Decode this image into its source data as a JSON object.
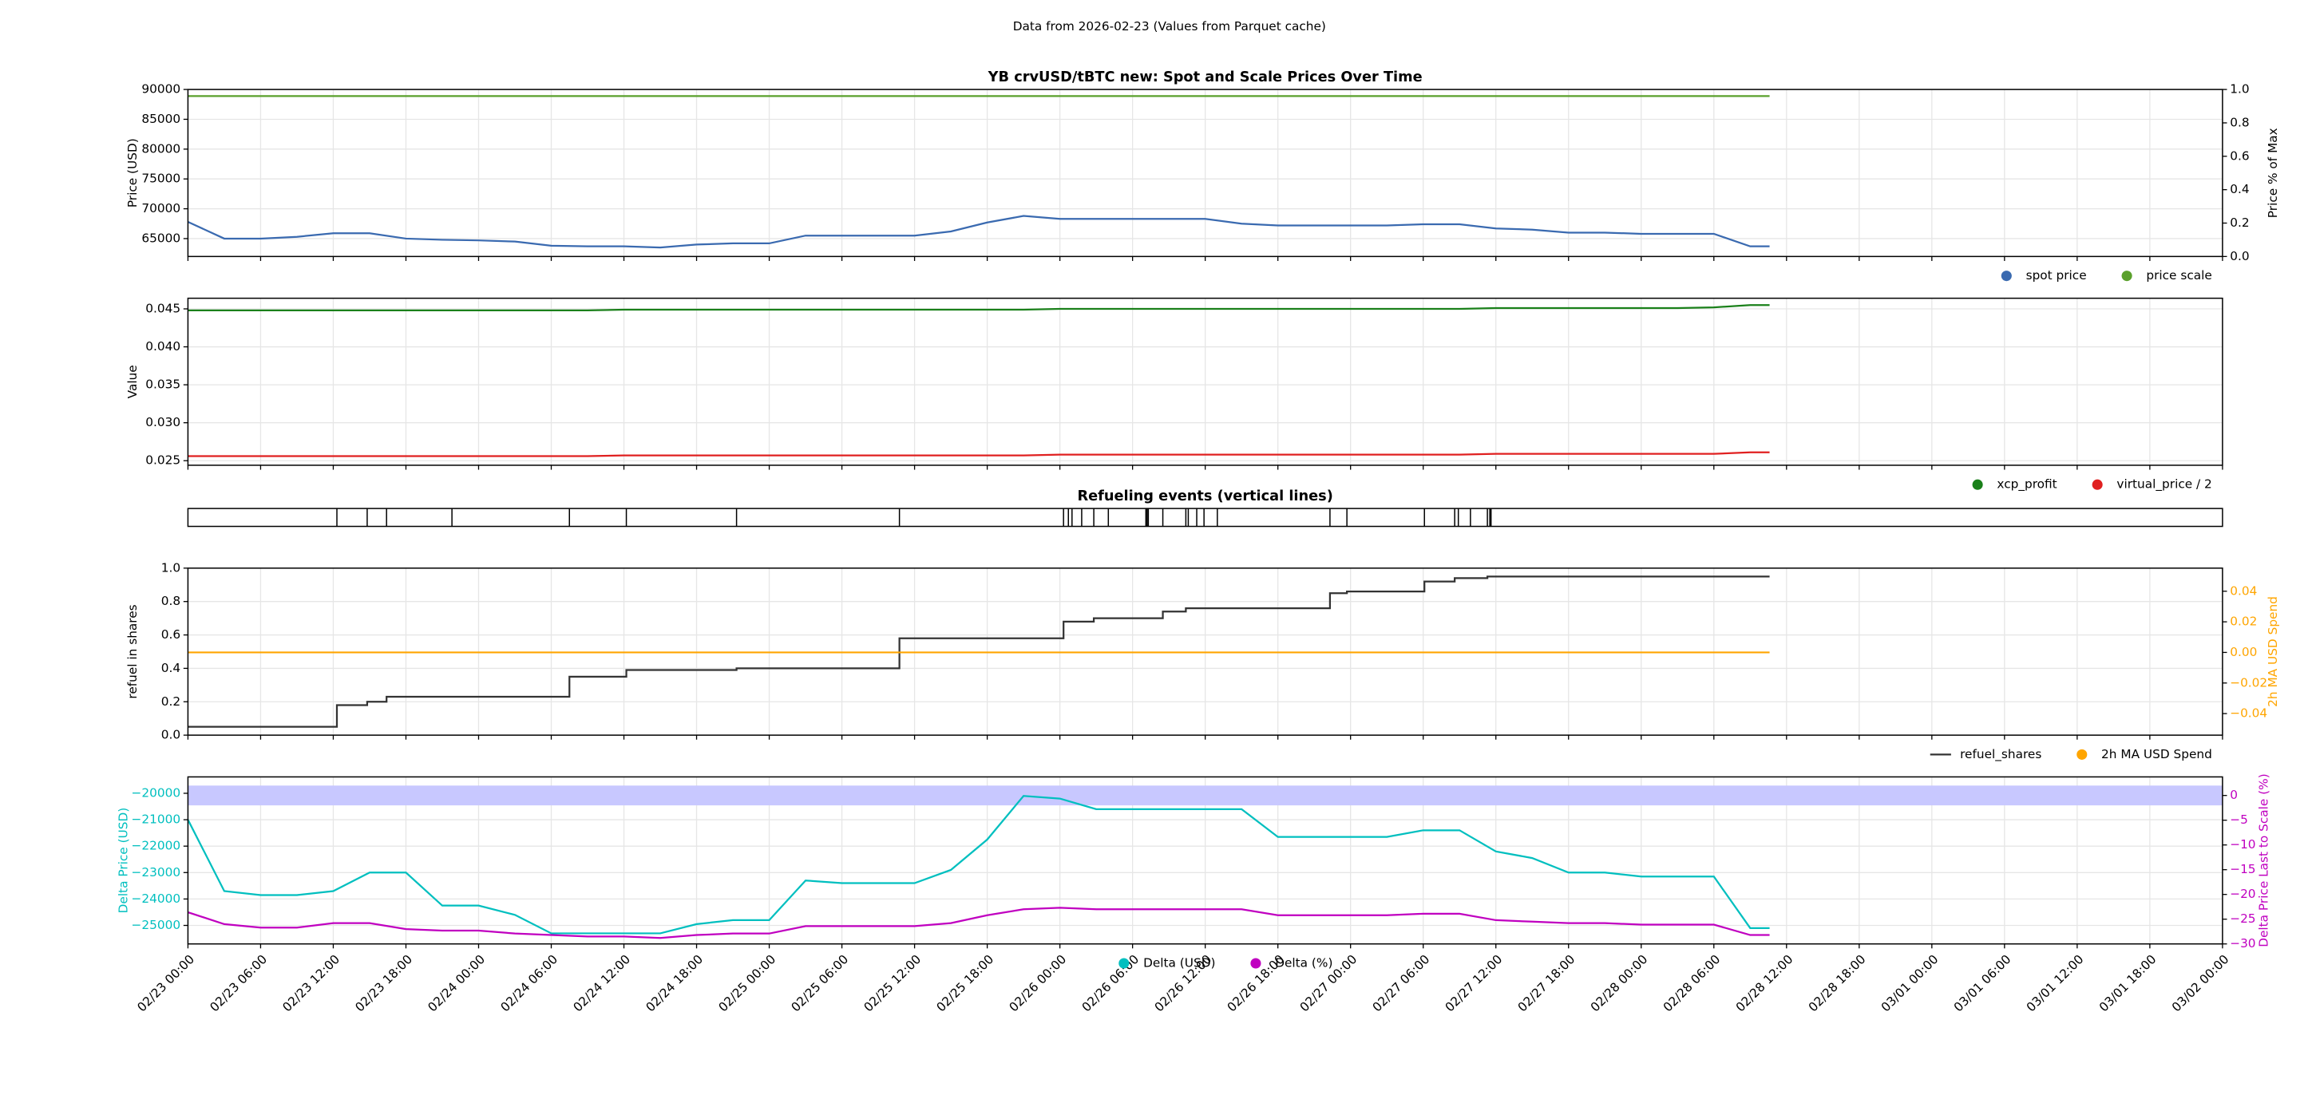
{
  "suptitle": "Data from 2026-02-23 (Values from Parquet cache)",
  "chart_data": [
    {
      "type": "line",
      "title": "YB crvUSD/tBTC new: Spot and Scale Prices Over Time",
      "ylabel": "Price (USD)",
      "y2label": "Price % of Max",
      "x": [
        "02/23 00:00",
        "02/23 03:00",
        "02/23 06:00",
        "02/23 09:00",
        "02/23 12:00",
        "02/23 15:00",
        "02/23 18:00",
        "02/23 21:00",
        "02/24 00:00",
        "02/24 03:00",
        "02/24 06:00",
        "02/24 09:00",
        "02/24 12:00",
        "02/24 15:00",
        "02/24 18:00",
        "02/24 21:00",
        "02/25 00:00",
        "02/25 03:00",
        "02/25 06:00",
        "02/25 09:00",
        "02/25 12:00",
        "02/25 15:00",
        "02/25 18:00",
        "02/25 21:00",
        "02/26 00:00",
        "02/26 03:00",
        "02/26 06:00",
        "02/26 09:00",
        "02/26 12:00",
        "02/26 15:00",
        "02/26 18:00",
        "02/26 21:00",
        "02/27 00:00",
        "02/27 03:00",
        "02/27 06:00",
        "02/27 09:00",
        "02/27 12:00",
        "02/27 15:00",
        "02/27 18:00",
        "02/27 21:00",
        "02/28 00:00",
        "02/28 03:00",
        "02/28 06:00",
        "02/28 09:00",
        "02/28 10:36"
      ],
      "series": [
        {
          "name": "spot price",
          "color": "#3a6ab0",
          "values": [
            67800,
            65000,
            65000,
            65300,
            65900,
            65900,
            65000,
            64800,
            64700,
            64500,
            63800,
            63700,
            63700,
            63500,
            64000,
            64200,
            64200,
            65500,
            65500,
            65500,
            65500,
            66200,
            67700,
            68800,
            68300,
            68300,
            68300,
            68300,
            68300,
            67500,
            67200,
            67200,
            67200,
            67200,
            67400,
            67400,
            66700,
            66500,
            66000,
            66000,
            65800,
            65800,
            65800,
            63700,
            63700
          ]
        },
        {
          "name": "price scale",
          "color": "#5aa02c",
          "values": [
            88900,
            88900,
            88900,
            88900,
            88900,
            88900,
            88900,
            88900,
            88900,
            88900,
            88900,
            88900,
            88900,
            88900,
            88900,
            88900,
            88900,
            88900,
            88900,
            88900,
            88900,
            88900,
            88900,
            88900,
            88900,
            88900,
            88900,
            88900,
            88900,
            88900,
            88900,
            88900,
            88900,
            88900,
            88900,
            88900,
            88900,
            88900,
            88900,
            88900,
            88900,
            88900,
            88900,
            88900,
            88900
          ]
        }
      ],
      "ylim": [
        62000,
        90000
      ],
      "yticks": [
        65000,
        70000,
        75000,
        80000,
        85000,
        90000
      ],
      "y2lim": [
        0,
        1
      ],
      "y2ticks": [
        {
          "value": 0,
          "label": "0.0"
        },
        0.2,
        0.4,
        0.6,
        0.8,
        {
          "value": 1,
          "label": "1.0"
        }
      ],
      "grid": true,
      "legend": "below-right"
    },
    {
      "type": "line",
      "ylabel": "Value",
      "x": [
        "02/23 00:00",
        "02/23 03:00",
        "02/23 06:00",
        "02/23 09:00",
        "02/23 12:00",
        "02/23 15:00",
        "02/23 18:00",
        "02/23 21:00",
        "02/24 00:00",
        "02/24 03:00",
        "02/24 06:00",
        "02/24 09:00",
        "02/24 12:00",
        "02/24 15:00",
        "02/24 18:00",
        "02/24 21:00",
        "02/25 00:00",
        "02/25 03:00",
        "02/25 06:00",
        "02/25 09:00",
        "02/25 12:00",
        "02/25 15:00",
        "02/25 18:00",
        "02/25 21:00",
        "02/26 00:00",
        "02/26 03:00",
        "02/26 06:00",
        "02/26 09:00",
        "02/26 12:00",
        "02/26 15:00",
        "02/26 18:00",
        "02/26 21:00",
        "02/27 00:00",
        "02/27 03:00",
        "02/27 06:00",
        "02/27 09:00",
        "02/27 12:00",
        "02/27 15:00",
        "02/27 18:00",
        "02/27 21:00",
        "02/28 00:00",
        "02/28 03:00",
        "02/28 06:00",
        "02/28 09:00",
        "02/28 10:36"
      ],
      "series": [
        {
          "name": "xcp_profit",
          "color": "#1a801a",
          "values": [
            0.0448,
            0.0448,
            0.0448,
            0.0448,
            0.0448,
            0.0448,
            0.0448,
            0.0448,
            0.0448,
            0.0448,
            0.0448,
            0.0448,
            0.0449,
            0.0449,
            0.0449,
            0.0449,
            0.0449,
            0.0449,
            0.0449,
            0.0449,
            0.0449,
            0.0449,
            0.0449,
            0.0449,
            0.045,
            0.045,
            0.045,
            0.045,
            0.045,
            0.045,
            0.045,
            0.045,
            0.045,
            0.045,
            0.045,
            0.045,
            0.0451,
            0.0451,
            0.0451,
            0.0451,
            0.0451,
            0.0451,
            0.0452,
            0.0455,
            0.0455
          ]
        },
        {
          "name": "virtual_price / 2",
          "color": "#e02020",
          "values": [
            0.0256,
            0.0256,
            0.0256,
            0.0256,
            0.0256,
            0.0256,
            0.0256,
            0.0256,
            0.0256,
            0.0256,
            0.0256,
            0.0256,
            0.0257,
            0.0257,
            0.0257,
            0.0257,
            0.0257,
            0.0257,
            0.0257,
            0.0257,
            0.0257,
            0.0257,
            0.0257,
            0.0257,
            0.0258,
            0.0258,
            0.0258,
            0.0258,
            0.0258,
            0.0258,
            0.0258,
            0.0258,
            0.0258,
            0.0258,
            0.0258,
            0.0258,
            0.0259,
            0.0259,
            0.0259,
            0.0259,
            0.0259,
            0.0259,
            0.0259,
            0.0261,
            0.0261
          ]
        }
      ],
      "ylim": [
        0.0244,
        0.0464
      ],
      "yticks": [
        0.025,
        {
          "value": 0.03,
          "label": "0.030"
        },
        0.035,
        {
          "value": 0.04,
          "label": "0.040"
        },
        0.045
      ],
      "grid": true,
      "legend": "below-right"
    },
    {
      "type": "events",
      "title": "Refueling events (vertical lines)",
      "color": "#000000",
      "x": [
        "02/23 12:18",
        "02/23 14:48",
        "02/23 16:24",
        "02/23 21:48",
        "02/24 07:30",
        "02/24 12:12",
        "02/24 21:18",
        "02/25 10:45",
        "02/26 00:18",
        "02/26 00:42",
        "02/26 01:00",
        "02/26 01:48",
        "02/26 02:48",
        "02/26 04:00",
        "02/26 07:06",
        "02/26 07:12",
        "02/26 07:18",
        "02/26 08:30",
        "02/26 10:24",
        "02/26 10:36",
        "02/26 11:18",
        "02/26 11:54",
        "02/26 13:00",
        "02/26 22:18",
        "02/26 23:42",
        "02/27 06:06",
        "02/27 08:36",
        "02/27 08:54",
        "02/27 09:54",
        "02/27 11:18",
        "02/27 11:30",
        "02/27 11:36"
      ]
    },
    {
      "type": "line",
      "ylabel": "refuel in shares",
      "y2label": "2h MA USD Spend",
      "y2_color": "#ffa500",
      "series": [
        {
          "name": "refuel_shares",
          "color": "#333333",
          "legend_marker": "line",
          "x": [
            "02/23 00:00",
            "02/23 12:18",
            "02/23 12:18",
            "02/23 14:48",
            "02/23 14:48",
            "02/23 16:24",
            "02/23 16:24",
            "02/24 07:30",
            "02/24 07:30",
            "02/24 12:12",
            "02/24 12:12",
            "02/24 21:18",
            "02/24 21:18",
            "02/25 10:45",
            "02/25 10:45",
            "02/26 00:18",
            "02/26 00:18",
            "02/26 02:48",
            "02/26 02:48",
            "02/26 08:30",
            "02/26 08:30",
            "02/26 10:24",
            "02/26 10:24",
            "02/26 22:18",
            "02/26 22:18",
            "02/26 23:42",
            "02/26 23:42",
            "02/27 06:06",
            "02/27 06:06",
            "02/27 08:36",
            "02/27 08:36",
            "02/27 11:18",
            "02/27 11:18",
            "02/28 10:36"
          ],
          "values": [
            0.05,
            0.05,
            0.18,
            0.18,
            0.2,
            0.2,
            0.23,
            0.23,
            0.35,
            0.35,
            0.39,
            0.39,
            0.4,
            0.4,
            0.58,
            0.58,
            0.68,
            0.68,
            0.7,
            0.7,
            0.74,
            0.74,
            0.76,
            0.76,
            0.85,
            0.85,
            0.86,
            0.86,
            0.92,
            0.92,
            0.94,
            0.94,
            0.95,
            0.95
          ]
        },
        {
          "name": "2h MA USD Spend",
          "color": "#ffa500",
          "axis": "y2",
          "x": [
            "02/23 00:00",
            "02/28 10:36"
          ],
          "values": [
            0,
            0
          ]
        }
      ],
      "ylim": [
        0,
        1
      ],
      "yticks": [
        {
          "value": 0,
          "label": "0.0"
        },
        0.2,
        0.4,
        0.6,
        0.8,
        {
          "value": 1,
          "label": "1.0"
        }
      ],
      "y2lim": [
        -0.0541,
        0.0551
      ],
      "y2ticks": [
        {
          "value": -0.04,
          "label": "−0.04"
        },
        {
          "value": -0.02,
          "label": "−0.02"
        },
        {
          "value": 0,
          "label": "0.00"
        },
        0.02,
        0.04
      ],
      "grid": true,
      "legend": "below-right"
    },
    {
      "type": "line",
      "ylabel": "Delta Price (USD)",
      "y2label": "Delta Price Last to Scale (%)",
      "y_color": "#00bfbf",
      "y2_color": "#c000c0",
      "x": [
        "02/23 00:00",
        "02/23 03:00",
        "02/23 06:00",
        "02/23 09:00",
        "02/23 12:00",
        "02/23 15:00",
        "02/23 18:00",
        "02/23 21:00",
        "02/24 00:00",
        "02/24 03:00",
        "02/24 06:00",
        "02/24 09:00",
        "02/24 12:00",
        "02/24 15:00",
        "02/24 18:00",
        "02/24 21:00",
        "02/25 00:00",
        "02/25 03:00",
        "02/25 06:00",
        "02/25 09:00",
        "02/25 12:00",
        "02/25 15:00",
        "02/25 18:00",
        "02/25 21:00",
        "02/26 00:00",
        "02/26 03:00",
        "02/26 06:00",
        "02/26 09:00",
        "02/26 12:00",
        "02/26 15:00",
        "02/26 18:00",
        "02/26 21:00",
        "02/27 00:00",
        "02/27 03:00",
        "02/27 06:00",
        "02/27 09:00",
        "02/27 12:00",
        "02/27 15:00",
        "02/27 18:00",
        "02/27 21:00",
        "02/28 00:00",
        "02/28 03:00",
        "02/28 06:00",
        "02/28 09:00",
        "02/28 10:36"
      ],
      "series": [
        {
          "name": "Delta (USD)",
          "color": "#00bfbf",
          "values": [
            -21000,
            -23700,
            -23850,
            -23850,
            -23700,
            -23000,
            -23000,
            -24250,
            -24250,
            -24600,
            -25300,
            -25300,
            -25300,
            -25300,
            -24950,
            -24800,
            -24800,
            -23300,
            -23400,
            -23400,
            -23400,
            -22900,
            -21750,
            -20100,
            -20200,
            -20600,
            -20600,
            -20600,
            -20600,
            -20600,
            -21650,
            -21650,
            -21650,
            -21650,
            -21400,
            -21400,
            -22200,
            -22450,
            -23000,
            -23000,
            -23150,
            -23150,
            -23150,
            -25100,
            -25100
          ]
        },
        {
          "name": "Delta (%)",
          "color": "#c000c0",
          "axis": "y2",
          "values": [
            -23.6,
            -26,
            -26.7,
            -26.7,
            -25.8,
            -25.8,
            -27,
            -27.3,
            -27.3,
            -27.9,
            -28.2,
            -28.5,
            -28.5,
            -28.8,
            -28.2,
            -27.9,
            -27.9,
            -26.4,
            -26.4,
            -26.4,
            -26.4,
            -25.8,
            -24.2,
            -23,
            -22.7,
            -23,
            -23,
            -23,
            -23,
            -23,
            -24.2,
            -24.2,
            -24.2,
            -24.2,
            -23.9,
            -23.9,
            -25.2,
            -25.5,
            -25.8,
            -25.8,
            -26.1,
            -26.1,
            -26.1,
            -28.2,
            -28.2
          ]
        }
      ],
      "band": {
        "axis": "y2",
        "range": [
          -2,
          2
        ],
        "color": "#c8c8ff"
      },
      "ylim": [
        -25700,
        -19380
      ],
      "yticks": [
        {
          "value": -25000,
          "label": "−25000"
        },
        {
          "value": -24000,
          "label": "−24000"
        },
        {
          "value": -23000,
          "label": "−23000"
        },
        {
          "value": -22000,
          "label": "−22000"
        },
        {
          "value": -21000,
          "label": "−21000"
        },
        {
          "value": -20000,
          "label": "−20000"
        }
      ],
      "y2lim": [
        -30,
        3.75
      ],
      "y2ticks": [
        {
          "value": -30,
          "label": "−30"
        },
        {
          "value": -25,
          "label": "−25"
        },
        {
          "value": -20,
          "label": "−20"
        },
        {
          "value": -15,
          "label": "−15"
        },
        {
          "value": -10,
          "label": "−10"
        },
        {
          "value": -5,
          "label": "−5"
        },
        0
      ],
      "xlim": [
        "02/23 00:00",
        "03/02 00:00"
      ],
      "xticks": [
        "02/23 00:00",
        "02/23 06:00",
        "02/23 12:00",
        "02/23 18:00",
        "02/24 00:00",
        "02/24 06:00",
        "02/24 12:00",
        "02/24 18:00",
        "02/25 00:00",
        "02/25 06:00",
        "02/25 12:00",
        "02/25 18:00",
        "02/26 00:00",
        "02/26 06:00",
        "02/26 12:00",
        "02/26 18:00",
        "02/27 00:00",
        "02/27 06:00",
        "02/27 12:00",
        "02/27 18:00",
        "02/28 00:00",
        "02/28 06:00",
        "02/28 12:00",
        "02/28 18:00",
        "03/01 00:00",
        "03/01 06:00",
        "03/01 12:00",
        "03/01 18:00",
        "03/02 00:00"
      ],
      "grid": true,
      "legend": "below-center"
    }
  ]
}
